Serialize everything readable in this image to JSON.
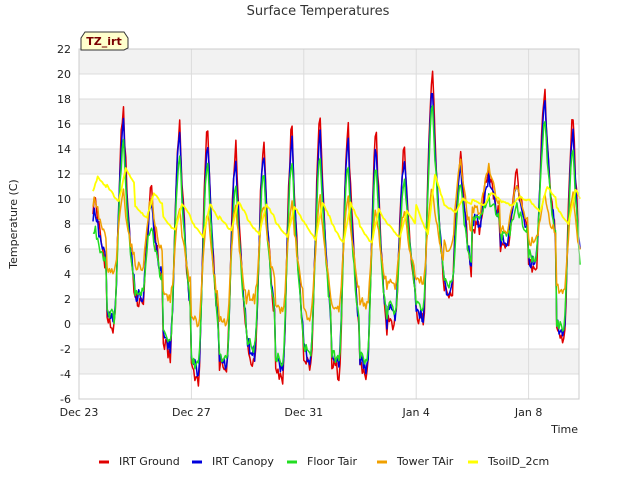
{
  "chart_data": {
    "type": "line",
    "title": "Surface Temperatures",
    "xlabel": "Time",
    "ylabel": "Temperature (C)",
    "badge": "TZ_irt",
    "ylim": [
      -6,
      22
    ],
    "yticks": [
      -6,
      -4,
      -2,
      0,
      2,
      4,
      6,
      8,
      10,
      12,
      14,
      16,
      18,
      20,
      22
    ],
    "xlim": [
      "2023-12-23",
      "2024-01-10"
    ],
    "xticks": [
      {
        "label": "Dec 23",
        "date": "2023-12-23"
      },
      {
        "label": "Dec 27",
        "date": "2023-12-27"
      },
      {
        "label": "Dec 31",
        "date": "2023-12-31"
      },
      {
        "label": "Jan 4",
        "date": "2024-01-04"
      },
      {
        "label": "Jan 8",
        "date": "2024-01-08"
      }
    ],
    "grid": true,
    "legend_position": "bottom",
    "daily_cycle": {
      "days": [
        "2023-12-23",
        "2023-12-24",
        "2023-12-25",
        "2023-12-26",
        "2023-12-27",
        "2023-12-28",
        "2023-12-29",
        "2023-12-30",
        "2023-12-31",
        "2024-01-01",
        "2024-01-02",
        "2024-01-03",
        "2024-01-04",
        "2024-01-05",
        "2024-01-06",
        "2024-01-07",
        "2024-01-08",
        "2024-01-09"
      ],
      "ground_min": [
        3.5,
        -0.5,
        1.5,
        -2.5,
        -4.5,
        -4,
        -3,
        -4.3,
        -3.5,
        -4,
        -4.2,
        0,
        0,
        2,
        7.5,
        6,
        4,
        -1.5
      ],
      "ground_max": [
        10,
        17,
        10.5,
        16,
        15.5,
        14,
        14.5,
        15.5,
        16,
        15.5,
        15,
        14,
        20,
        13.5,
        12.5,
        12,
        18.3,
        16.5
      ],
      "tower_min": [
        6,
        4,
        4.5,
        2,
        0,
        0,
        2,
        1,
        0.5,
        1,
        1.5,
        3,
        3.5,
        6,
        9,
        7.5,
        6.5,
        2.5
      ],
      "tower_max": [
        10,
        10.5,
        10,
        9,
        9,
        9.5,
        9.5,
        9.5,
        10,
        10,
        9,
        9,
        11,
        13,
        12.5,
        11,
        10,
        10.5
      ],
      "soil_min": [
        10,
        9.8,
        8.5,
        7.5,
        7,
        7.5,
        7.2,
        7,
        6.8,
        6.5,
        6.5,
        7,
        7.2,
        9,
        9.5,
        9.5,
        9,
        8
      ],
      "soil_max": [
        11.8,
        12.5,
        10.5,
        9.6,
        9.6,
        9.8,
        9.6,
        9.4,
        9.7,
        9.7,
        9.2,
        9,
        12,
        10,
        10.5,
        10.2,
        11,
        10.8
      ]
    },
    "series": [
      {
        "name": "IRT Ground",
        "color": "#e00000",
        "key": "ground"
      },
      {
        "name": "IRT Canopy",
        "color": "#0000dd",
        "key": "canopy"
      },
      {
        "name": "Floor Tair",
        "color": "#22dd22",
        "key": "floor"
      },
      {
        "name": "Tower TAir",
        "color": "#f0a000",
        "key": "tower"
      },
      {
        "name": "TsoilD_2cm",
        "color": "#ffff00",
        "key": "soil"
      }
    ]
  }
}
